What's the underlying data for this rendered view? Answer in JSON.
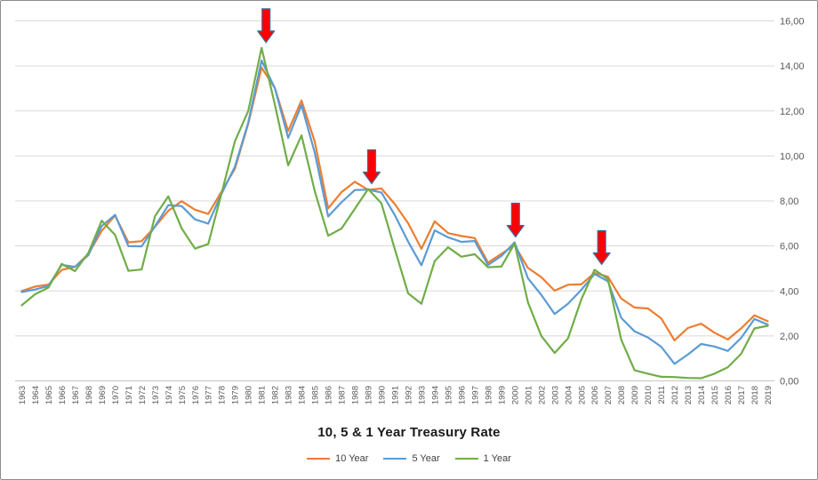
{
  "chart_data": {
    "type": "line",
    "title": "10, 5 & 1 Year Treasury Rate",
    "x": [
      1963,
      1964,
      1965,
      1966,
      1967,
      1968,
      1969,
      1970,
      1971,
      1972,
      1973,
      1974,
      1975,
      1976,
      1977,
      1978,
      1979,
      1980,
      1981,
      1982,
      1983,
      1984,
      1985,
      1986,
      1987,
      1988,
      1989,
      1990,
      1991,
      1992,
      1993,
      1994,
      1995,
      1996,
      1997,
      1998,
      1999,
      2000,
      2001,
      2002,
      2003,
      2004,
      2005,
      2006,
      2007,
      2008,
      2009,
      2010,
      2011,
      2012,
      2013,
      2014,
      2015,
      2016,
      2017,
      2018,
      2019
    ],
    "series": [
      {
        "name": "10 Year",
        "color": "#ED7D31",
        "values": [
          4.0,
          4.19,
          4.28,
          4.93,
          5.07,
          5.64,
          6.67,
          7.35,
          6.16,
          6.21,
          6.85,
          7.56,
          7.99,
          7.61,
          7.42,
          8.41,
          9.43,
          11.43,
          13.92,
          13.01,
          11.1,
          12.46,
          10.62,
          7.67,
          8.39,
          8.85,
          8.49,
          8.55,
          7.86,
          7.01,
          5.87,
          7.09,
          6.57,
          6.44,
          6.35,
          5.26,
          5.65,
          6.03,
          5.02,
          4.61,
          4.01,
          4.27,
          4.29,
          4.8,
          4.63,
          3.66,
          3.26,
          3.22,
          2.78,
          1.8,
          2.35,
          2.54,
          2.14,
          1.84,
          2.33,
          2.91,
          2.65
        ]
      },
      {
        "name": "5 Year",
        "color": "#5B9BD5",
        "values": [
          3.95,
          4.06,
          4.22,
          5.16,
          5.07,
          5.59,
          6.88,
          7.38,
          5.99,
          5.98,
          6.87,
          7.81,
          7.77,
          7.18,
          6.99,
          8.32,
          9.52,
          11.48,
          14.24,
          13.0,
          10.8,
          12.26,
          10.13,
          7.31,
          7.94,
          8.48,
          8.5,
          8.37,
          7.37,
          6.19,
          5.14,
          6.69,
          6.38,
          6.18,
          6.22,
          5.15,
          5.55,
          6.16,
          4.56,
          3.82,
          2.97,
          3.43,
          4.05,
          4.75,
          4.43,
          2.8,
          2.2,
          1.93,
          1.52,
          0.76,
          1.17,
          1.64,
          1.53,
          1.33,
          1.91,
          2.75,
          2.5
        ]
      },
      {
        "name": "1 Year",
        "color": "#70AD47",
        "values": [
          3.36,
          3.85,
          4.15,
          5.2,
          4.88,
          5.69,
          7.12,
          6.49,
          4.89,
          4.95,
          7.32,
          8.2,
          6.78,
          5.88,
          6.08,
          8.34,
          10.65,
          12.0,
          14.8,
          12.27,
          9.58,
          10.91,
          8.42,
          6.45,
          6.77,
          7.65,
          8.53,
          7.89,
          5.86,
          3.89,
          3.43,
          5.32,
          5.94,
          5.52,
          5.63,
          5.05,
          5.08,
          6.11,
          3.49,
          2.0,
          1.24,
          1.89,
          3.62,
          4.94,
          4.53,
          1.83,
          0.47,
          0.32,
          0.18,
          0.17,
          0.13,
          0.12,
          0.32,
          0.61,
          1.2,
          2.33,
          2.45
        ]
      }
    ],
    "ylim": [
      0,
      16
    ],
    "y_ticks": [
      0,
      2,
      4,
      6,
      8,
      10,
      12,
      14,
      16
    ],
    "y_tick_labels": [
      "0,00",
      "2,00",
      "4,00",
      "6,00",
      "8,00",
      "10,00",
      "12,00",
      "14,00",
      "16,00"
    ],
    "y_axis_side": "right",
    "grid": true,
    "legend_position": "bottom",
    "annotations": [
      {
        "type": "down-arrow",
        "year": 1981,
        "points_to_value": 14.8,
        "dx": 5
      },
      {
        "type": "down-arrow",
        "year": 1989,
        "points_to_value": 8.53,
        "dx": 4
      },
      {
        "type": "down-arrow",
        "year": 2000,
        "points_to_value": 6.16,
        "dx": 1
      },
      {
        "type": "down-arrow",
        "year": 2006,
        "points_to_value": 4.94,
        "dx": 8
      }
    ]
  },
  "style": {
    "gridline_color": "#D9D9D9",
    "axis_line_color": "#C6C6C6",
    "axis_text_color": "#595959",
    "arrow_fill": "#FF0000",
    "arrow_stroke": "#41719C",
    "frame_border_color": "#8C8C8C",
    "line_width": 2.2
  }
}
